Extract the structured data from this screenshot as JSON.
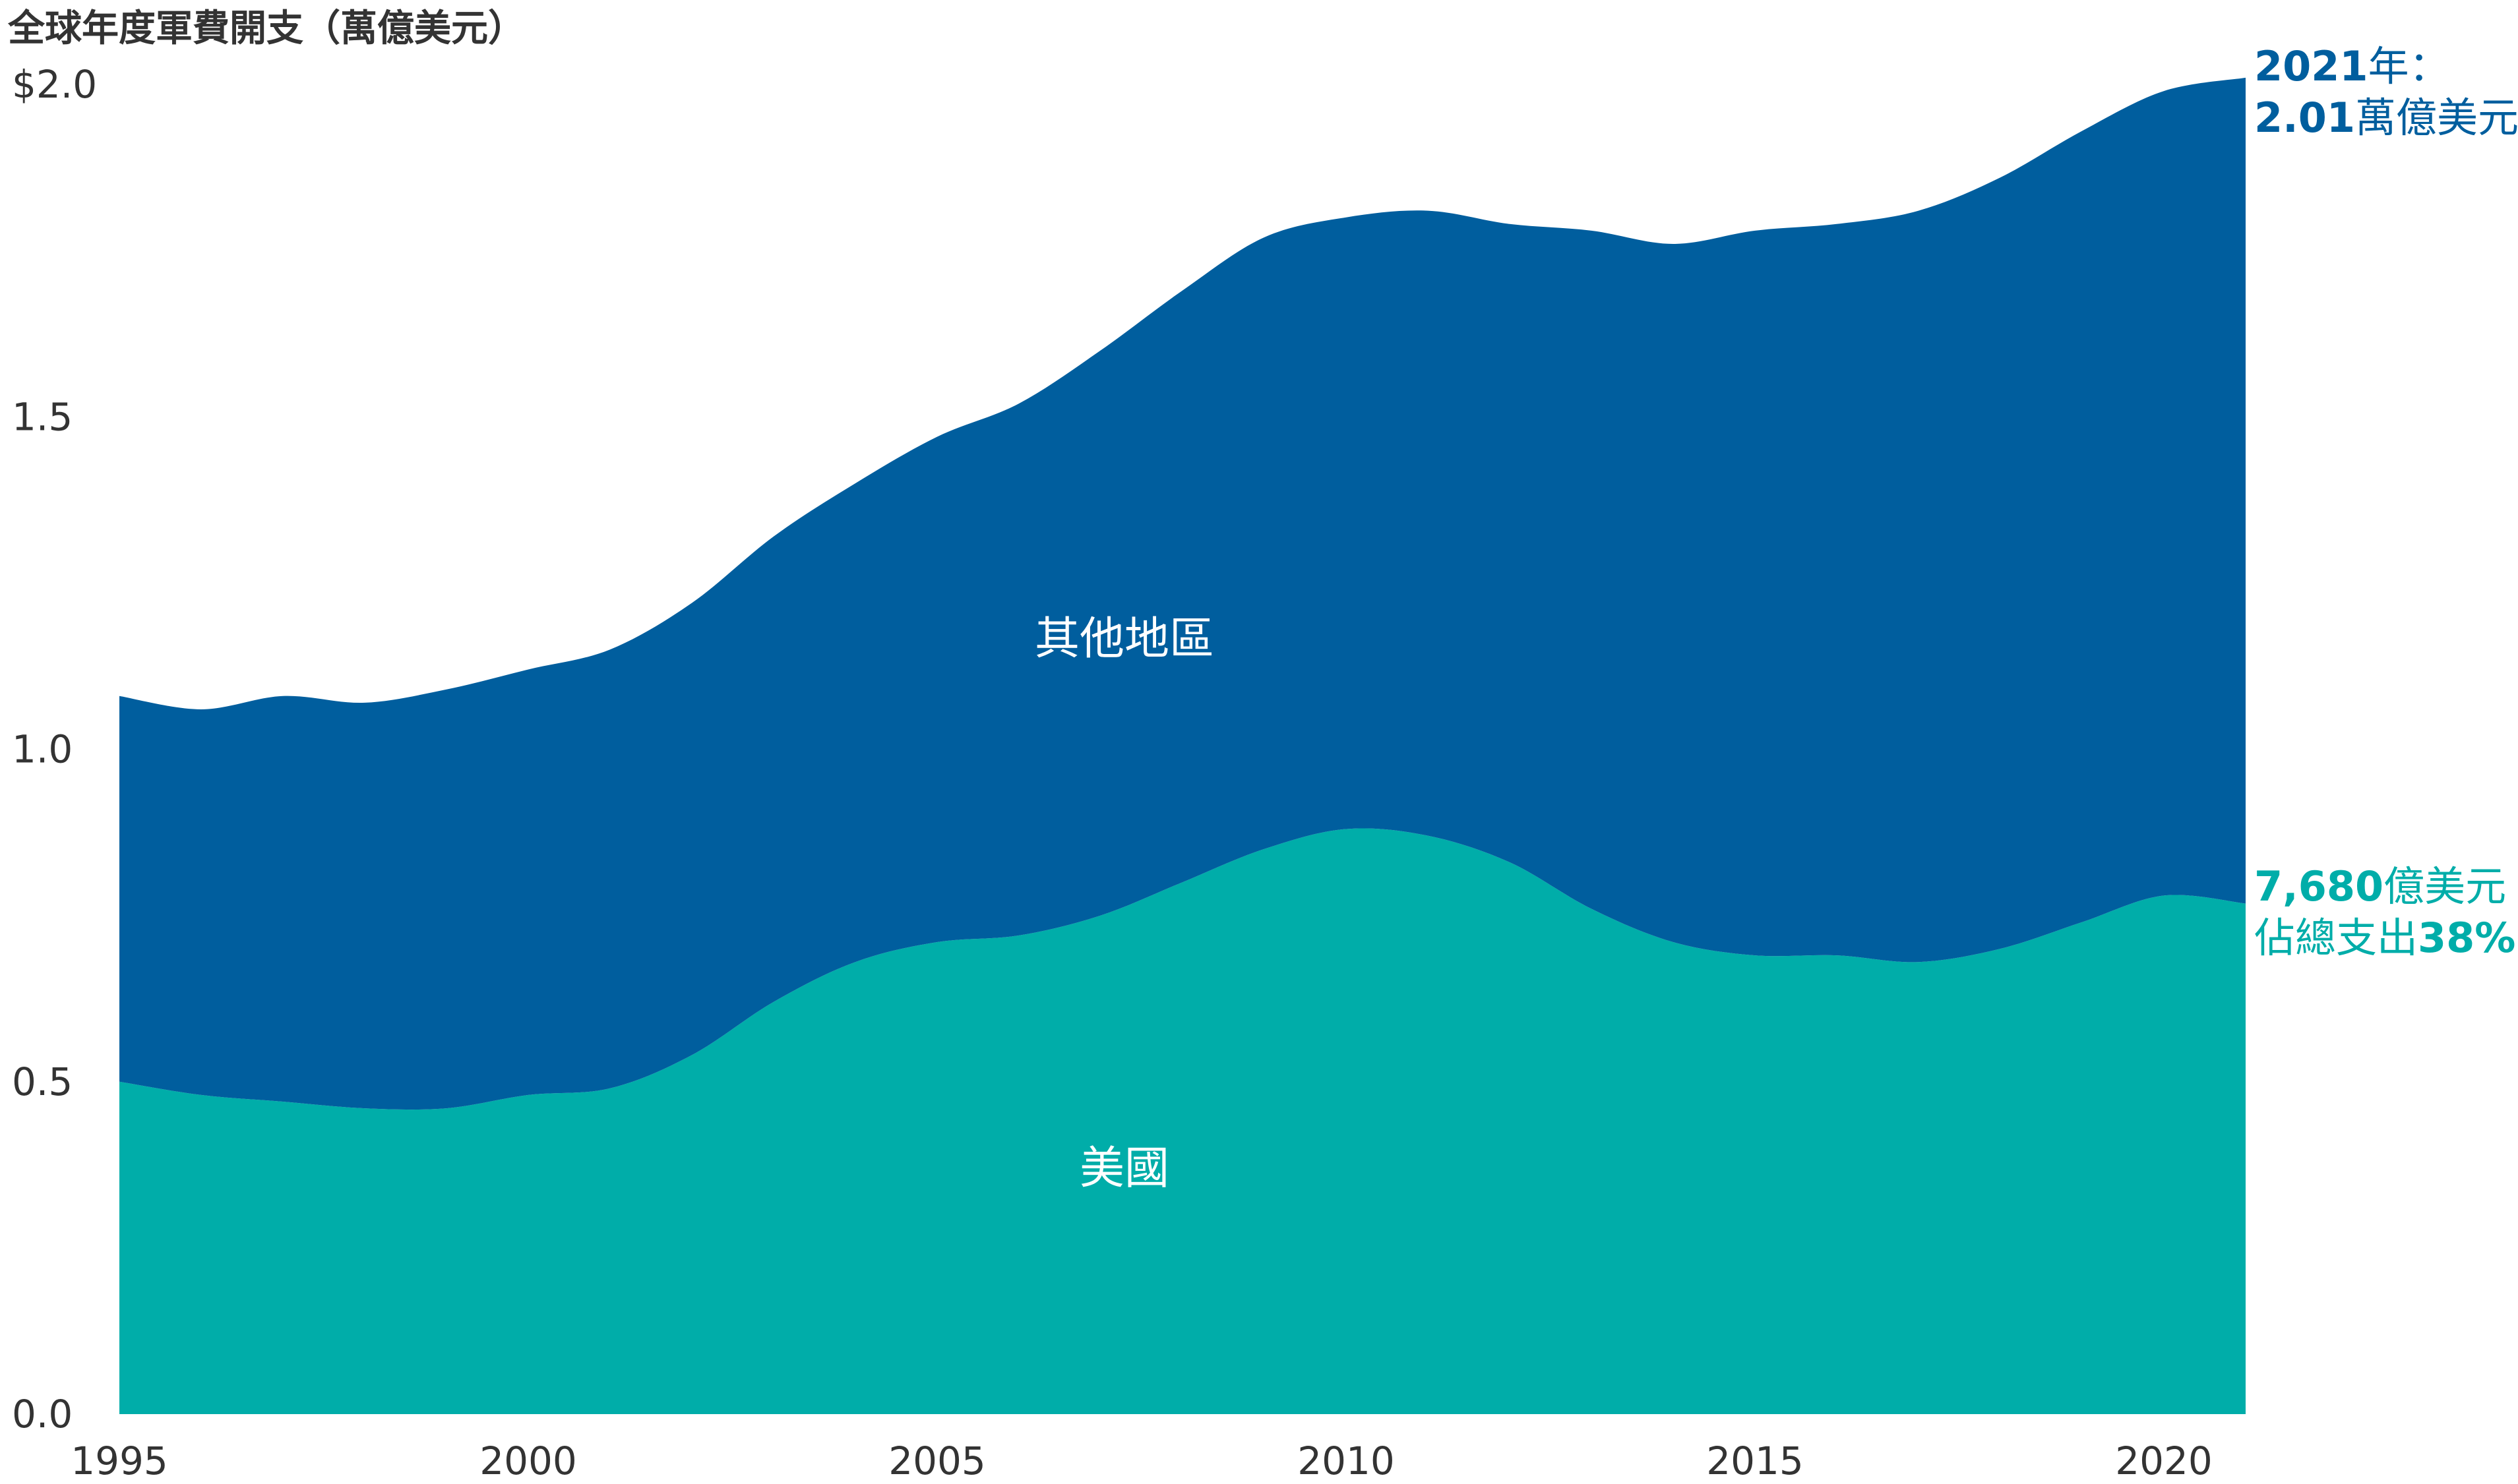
{
  "chart_data": {
    "type": "area",
    "stacked": true,
    "title": "全球年度軍費開支（萬億美元）",
    "x": [
      1995,
      1996,
      1997,
      1998,
      1999,
      2000,
      2001,
      2002,
      2003,
      2004,
      2005,
      2006,
      2007,
      2008,
      2009,
      2010,
      2011,
      2012,
      2013,
      2014,
      2015,
      2016,
      2017,
      2018,
      2019,
      2020,
      2021
    ],
    "xlim": [
      1995,
      2021
    ],
    "ylim": [
      0,
      2.0
    ],
    "x_ticks": [
      "1995",
      "2000",
      "2005",
      "2010",
      "2015",
      "2020"
    ],
    "x_tick_values": [
      1995,
      2000,
      2005,
      2010,
      2015,
      2020
    ],
    "y_ticks": [
      "0.0",
      "0.5",
      "1.0",
      "1.5",
      "$2.0"
    ],
    "y_tick_values": [
      0,
      0.5,
      1.0,
      1.5,
      2.0
    ],
    "grid": false,
    "series": [
      {
        "name": "美國",
        "color": "#00ada9",
        "values": [
          0.5,
          0.48,
          0.47,
          0.46,
          0.46,
          0.48,
          0.49,
          0.54,
          0.62,
          0.68,
          0.71,
          0.72,
          0.75,
          0.8,
          0.85,
          0.88,
          0.87,
          0.83,
          0.76,
          0.71,
          0.69,
          0.69,
          0.68,
          0.7,
          0.74,
          0.78,
          0.768
        ]
      },
      {
        "name": "其他地區",
        "color": "#005e9e",
        "values": [
          0.58,
          0.58,
          0.61,
          0.61,
          0.63,
          0.64,
          0.66,
          0.68,
          0.7,
          0.72,
          0.76,
          0.8,
          0.85,
          0.89,
          0.92,
          0.92,
          0.94,
          0.96,
          1.02,
          1.05,
          1.09,
          1.1,
          1.13,
          1.16,
          1.19,
          1.21,
          1.242
        ]
      }
    ],
    "annotations": {
      "total": {
        "line1_bold": "2021",
        "line1_rest": "年：",
        "line2_bold": "2.01",
        "line2_rest": "萬億美元",
        "color": "#005e9e"
      },
      "us": {
        "line1_bold": "7,680",
        "line1_rest": "億美元",
        "line2_rest": "佔總支出",
        "line2_bold": "38%",
        "color": "#00ada9"
      }
    }
  }
}
